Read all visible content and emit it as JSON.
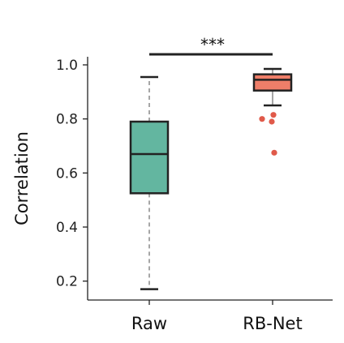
{
  "chart_data": {
    "type": "box",
    "ylabel": "Correlation",
    "xlabel": "",
    "ylim": [
      0.13,
      1.03
    ],
    "yticks": [
      0.2,
      0.4,
      0.6,
      0.8,
      1.0
    ],
    "ytick_labels": [
      "0.2",
      "0.4",
      "0.6",
      "0.8",
      "1.0"
    ],
    "grid": false,
    "significance": {
      "between": [
        "Raw",
        "RB-Net"
      ],
      "label": "***"
    },
    "categories": [
      "Raw",
      "RB-Net"
    ],
    "boxes": [
      {
        "name": "Raw",
        "whisker_low": 0.17,
        "q1": 0.525,
        "median": 0.67,
        "q3": 0.79,
        "whisker_high": 0.955,
        "outliers": [],
        "fill": "#63b6a0",
        "line_style": "dashed"
      },
      {
        "name": "RB-Net",
        "whisker_low": 0.85,
        "q1": 0.905,
        "median": 0.945,
        "q3": 0.965,
        "whisker_high": 0.985,
        "outliers": [
          0.815,
          0.8,
          0.79,
          0.675
        ],
        "fill": "#ee7e69",
        "line_style": "solid"
      }
    ],
    "outlier_color": "#e05a4a"
  }
}
